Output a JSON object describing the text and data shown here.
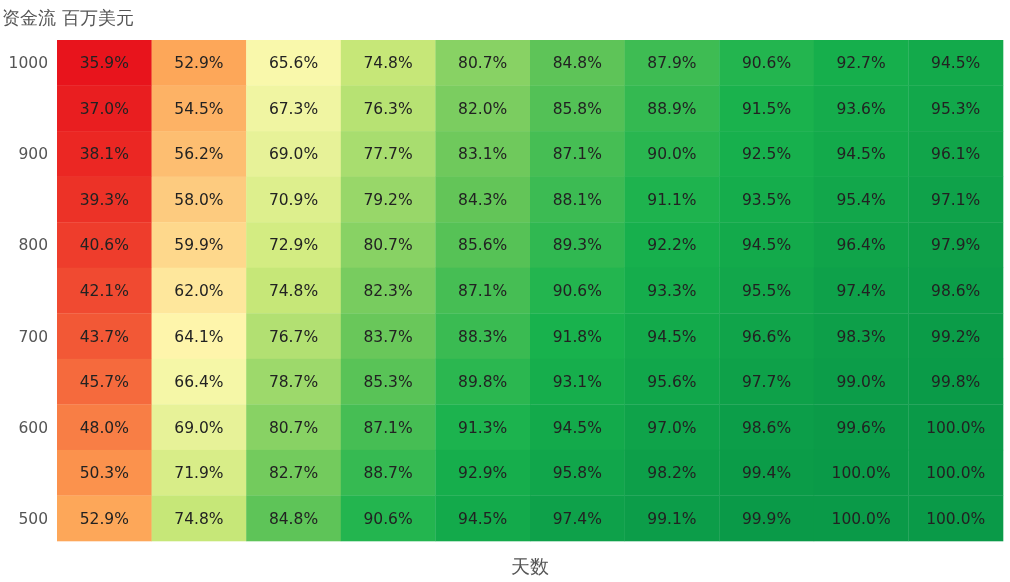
{
  "chart_data": {
    "type": "heatmap",
    "title": "资金流 百万美元",
    "xlabel": "天数",
    "categories": [
      null,
      null,
      null,
      null,
      null,
      null,
      null,
      null,
      null,
      null
    ],
    "y_categories": [
      "1000",
      null,
      "900",
      null,
      "800",
      null,
      "700",
      null,
      "600",
      null,
      "500"
    ],
    "cells": [
      [
        35.9,
        52.9,
        65.6,
        74.8,
        80.7,
        84.8,
        87.9,
        90.6,
        92.7,
        94.5
      ],
      [
        37.0,
        54.5,
        67.3,
        76.3,
        82.0,
        85.8,
        88.9,
        91.5,
        93.6,
        95.3
      ],
      [
        38.1,
        56.2,
        69.0,
        77.7,
        83.1,
        87.1,
        90.0,
        92.5,
        94.5,
        96.1
      ],
      [
        39.3,
        58.0,
        70.9,
        79.2,
        84.3,
        88.1,
        91.1,
        93.5,
        95.4,
        97.1
      ],
      [
        40.6,
        59.9,
        72.9,
        80.7,
        85.6,
        89.3,
        92.2,
        94.5,
        96.4,
        97.9
      ],
      [
        42.1,
        62.0,
        74.8,
        82.3,
        87.1,
        90.6,
        93.3,
        95.5,
        97.4,
        98.6
      ],
      [
        43.7,
        64.1,
        76.7,
        83.7,
        88.3,
        91.8,
        94.5,
        96.6,
        98.3,
        99.2
      ],
      [
        45.7,
        66.4,
        78.7,
        85.3,
        89.8,
        93.1,
        95.6,
        97.7,
        99.0,
        99.8
      ],
      [
        48.0,
        69.0,
        80.7,
        87.1,
        91.3,
        94.5,
        97.0,
        98.6,
        99.6,
        100.0
      ],
      [
        50.3,
        71.9,
        82.7,
        88.7,
        92.9,
        95.8,
        98.2,
        99.4,
        100.0,
        100.0
      ],
      [
        52.9,
        74.8,
        84.8,
        90.6,
        94.5,
        97.4,
        99.1,
        99.9,
        100.0,
        100.0
      ]
    ],
    "cell_labels": [
      [
        "35.9%",
        "52.9%",
        "65.6%",
        "74.8%",
        "80.7%",
        "84.8%",
        "87.9%",
        "90.6%",
        "92.7%",
        "94.5%"
      ],
      [
        "37.0%",
        "54.5%",
        "67.3%",
        "76.3%",
        "82.0%",
        "85.8%",
        "88.9%",
        "91.5%",
        "93.6%",
        "95.3%"
      ],
      [
        "38.1%",
        "56.2%",
        "69.0%",
        "77.7%",
        "83.1%",
        "87.1%",
        "90.0%",
        "92.5%",
        "94.5%",
        "96.1%"
      ],
      [
        "39.3%",
        "58.0%",
        "70.9%",
        "79.2%",
        "84.3%",
        "88.1%",
        "91.1%",
        "93.5%",
        "95.4%",
        "97.1%"
      ],
      [
        "40.6%",
        "59.9%",
        "72.9%",
        "80.7%",
        "85.6%",
        "89.3%",
        "92.2%",
        "94.5%",
        "96.4%",
        "97.9%"
      ],
      [
        "42.1%",
        "62.0%",
        "74.8%",
        "82.3%",
        "87.1%",
        "90.6%",
        "93.3%",
        "95.5%",
        "97.4%",
        "98.6%"
      ],
      [
        "43.7%",
        "64.1%",
        "76.7%",
        "83.7%",
        "88.3%",
        "91.8%",
        "94.5%",
        "96.6%",
        "98.3%",
        "99.2%"
      ],
      [
        "45.7%",
        "66.4%",
        "78.7%",
        "85.3%",
        "89.8%",
        "93.1%",
        "95.6%",
        "97.7%",
        "99.0%",
        "99.8%"
      ],
      [
        "48.0%",
        "69.0%",
        "80.7%",
        "87.1%",
        "91.3%",
        "94.5%",
        "97.0%",
        "98.6%",
        "99.6%",
        "100.0%"
      ],
      [
        "50.3%",
        "71.9%",
        "82.7%",
        "88.7%",
        "92.9%",
        "95.8%",
        "98.2%",
        "99.4%",
        "100.0%",
        "100.0%"
      ],
      [
        "52.9%",
        "74.8%",
        "84.8%",
        "90.6%",
        "94.5%",
        "97.4%",
        "99.1%",
        "99.9%",
        "100.0%",
        "100.0%"
      ]
    ]
  }
}
